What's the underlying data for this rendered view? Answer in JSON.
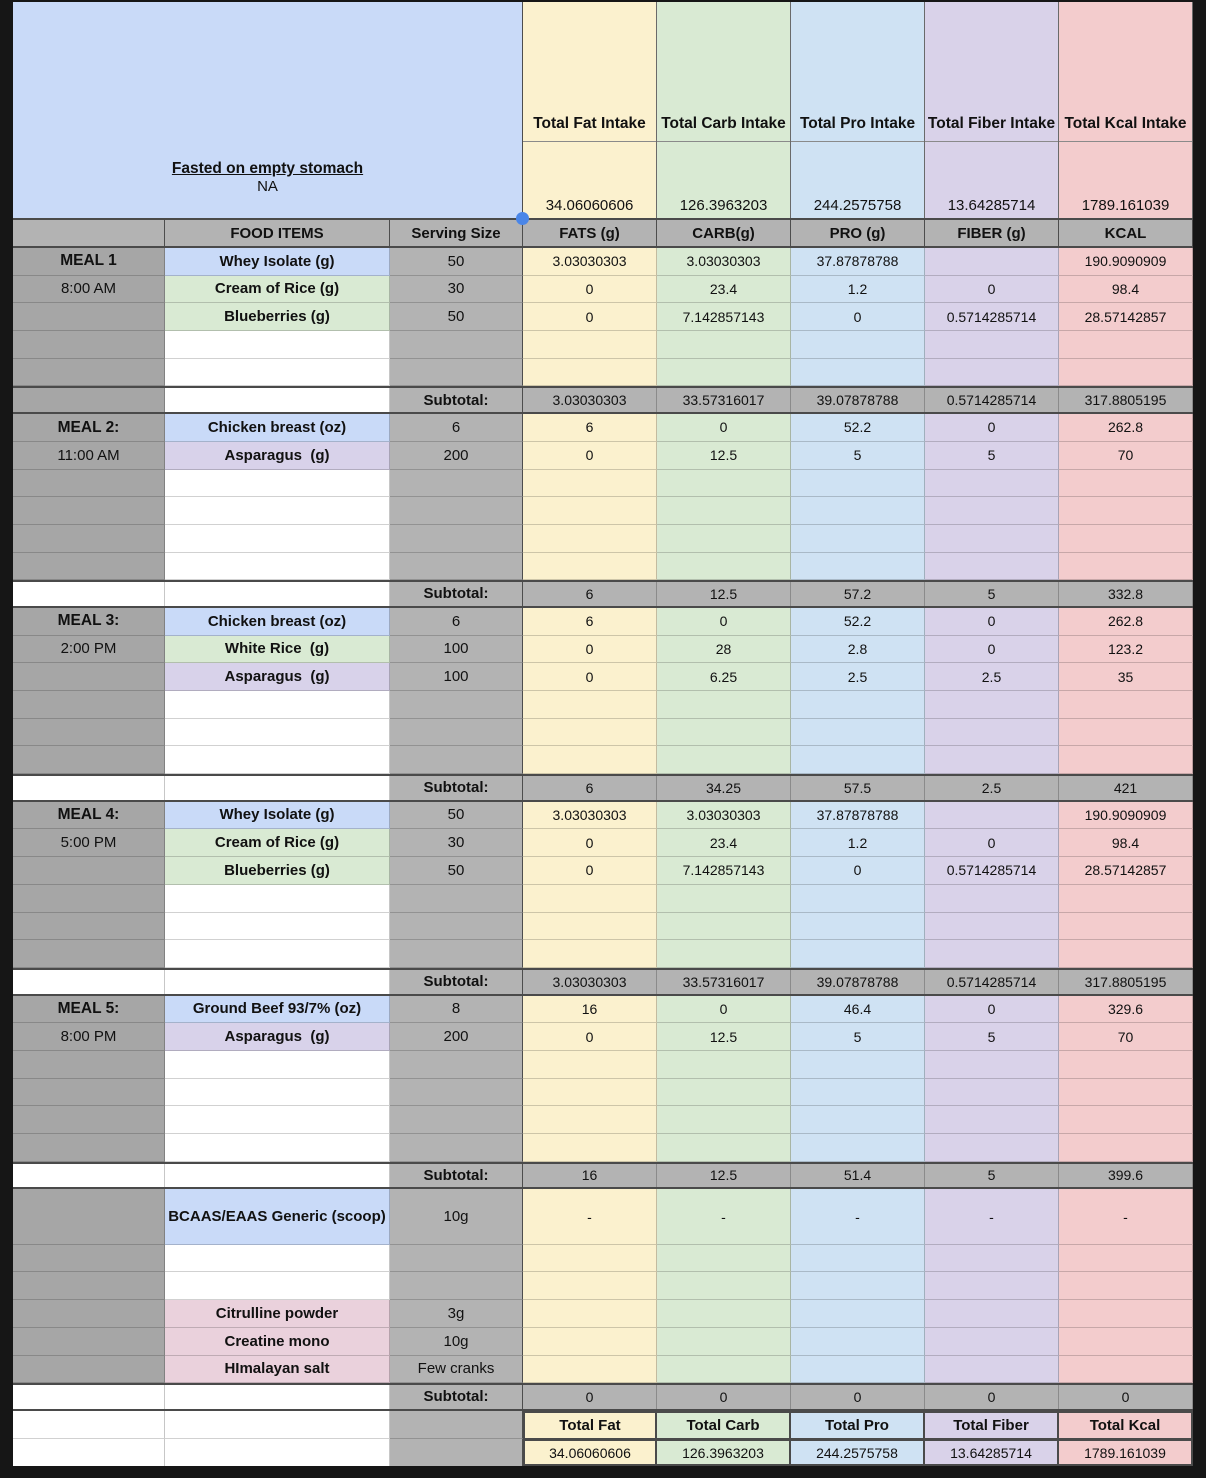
{
  "colors": {
    "header_blue": "#c9daf8",
    "col_fat": "#fbf1ce",
    "col_carb": "#d9ead3",
    "col_pro": "#cfe2f3",
    "col_fiber": "#d9d2e9",
    "col_kcal": "#f3cccd",
    "food_blue": "#c9daf8",
    "food_green": "#d9ead3",
    "food_purple": "#d8d2ea",
    "food_pink": "#ead1dc",
    "gray_a": "#a6a6a6",
    "gray_cell": "#b3b3b3",
    "white": "#ffffff",
    "selection_handle": "#4a86e8"
  },
  "top_note": {
    "title": "Fasted on empty stomach",
    "value": "NA"
  },
  "intake_summary": {
    "headers": [
      "Total Fat Intake",
      "Total Carb Intake",
      "Total Pro Intake",
      "Total Fiber Intake",
      "Total Kcal Intake"
    ],
    "totals": [
      "34.06060606",
      "126.3963203",
      "244.2575758",
      "13.64285714",
      "1789.161039"
    ]
  },
  "table_header": {
    "food_items": "FOOD ITEMS",
    "serving_size": "Serving Size",
    "macros": [
      "FATS (g)",
      "CARB(g)",
      "PRO (g)",
      "FIBER (g)",
      "KCAL"
    ]
  },
  "subtotal_label": "Subtotal:",
  "sections": [
    {
      "label": "MEAL 1",
      "time": "8:00 AM",
      "empties": 2,
      "subtotal_gray_a": true,
      "rows": [
        {
          "food": "Whey Isolate (g)",
          "color": "food_blue",
          "serving": "50",
          "values": [
            "3.03030303",
            "3.03030303",
            "37.87878788",
            "",
            "190.9090909"
          ]
        },
        {
          "food": "Cream of Rice (g)",
          "color": "food_green",
          "serving": "30",
          "values": [
            "0",
            "23.4",
            "1.2",
            "0",
            "98.4"
          ]
        },
        {
          "food": "Blueberries (g)",
          "color": "food_green",
          "serving": "50",
          "values": [
            "0",
            "7.142857143",
            "0",
            "0.5714285714",
            "28.57142857"
          ]
        }
      ],
      "subtotal": [
        "3.03030303",
        "33.57316017",
        "39.07878788",
        "0.5714285714",
        "317.8805195"
      ]
    },
    {
      "label": "MEAL 2:",
      "time": "11:00 AM",
      "empties": 4,
      "subtotal_gray_a": false,
      "rows": [
        {
          "food": "Chicken breast (oz)",
          "color": "food_blue",
          "serving": "6",
          "values": [
            "6",
            "0",
            "52.2",
            "0",
            "262.8"
          ]
        },
        {
          "food": "Asparagus  (g)",
          "color": "food_purple",
          "serving": "200",
          "values": [
            "0",
            "12.5",
            "5",
            "5",
            "70"
          ]
        }
      ],
      "subtotal": [
        "6",
        "12.5",
        "57.2",
        "5",
        "332.8"
      ]
    },
    {
      "label": "MEAL 3:",
      "time": "2:00 PM",
      "empties": 3,
      "subtotal_gray_a": false,
      "rows": [
        {
          "food": "Chicken breast (oz)",
          "color": "food_blue",
          "serving": "6",
          "values": [
            "6",
            "0",
            "52.2",
            "0",
            "262.8"
          ]
        },
        {
          "food": "White Rice  (g)",
          "color": "food_green",
          "serving": "100",
          "values": [
            "0",
            "28",
            "2.8",
            "0",
            "123.2"
          ]
        },
        {
          "food": "Asparagus  (g)",
          "color": "food_purple",
          "serving": "100",
          "values": [
            "0",
            "6.25",
            "2.5",
            "2.5",
            "35"
          ]
        }
      ],
      "subtotal": [
        "6",
        "34.25",
        "57.5",
        "2.5",
        "421"
      ]
    },
    {
      "label": "MEAL 4:",
      "time": "5:00 PM",
      "empties": 3,
      "subtotal_gray_a": false,
      "rows": [
        {
          "food": "Whey Isolate (g)",
          "color": "food_blue",
          "serving": "50",
          "values": [
            "3.03030303",
            "3.03030303",
            "37.87878788",
            "",
            "190.9090909"
          ]
        },
        {
          "food": "Cream of Rice (g)",
          "color": "food_green",
          "serving": "30",
          "values": [
            "0",
            "23.4",
            "1.2",
            "0",
            "98.4"
          ]
        },
        {
          "food": "Blueberries (g)",
          "color": "food_green",
          "serving": "50",
          "values": [
            "0",
            "7.142857143",
            "0",
            "0.5714285714",
            "28.57142857"
          ]
        }
      ],
      "subtotal": [
        "3.03030303",
        "33.57316017",
        "39.07878788",
        "0.5714285714",
        "317.8805195"
      ]
    },
    {
      "label": "MEAL 5:",
      "time": "8:00 PM",
      "empties": 4,
      "subtotal_gray_a": false,
      "rows": [
        {
          "food": "Ground Beef 93/7% (oz)",
          "color": "food_blue",
          "serving": "8",
          "values": [
            "16",
            "0",
            "46.4",
            "0",
            "329.6"
          ]
        },
        {
          "food": "Asparagus  (g)",
          "color": "food_purple",
          "serving": "200",
          "values": [
            "0",
            "12.5",
            "5",
            "5",
            "70"
          ]
        }
      ],
      "subtotal": [
        "16",
        "12.5",
        "51.4",
        "5",
        "399.6"
      ]
    },
    {
      "label": "",
      "time": "",
      "empties": 0,
      "subtotal_gray_a": false,
      "rows": [
        {
          "food": "BCAAS/EAAS Generic (scoop)",
          "color": "food_blue",
          "serving": "10g",
          "tall": true,
          "values": [
            "-",
            "-",
            "-",
            "-",
            "-"
          ]
        },
        {
          "food": "",
          "color": "white",
          "serving": "",
          "values": [
            "",
            "",
            "",
            "",
            ""
          ]
        },
        {
          "food": "",
          "color": "white",
          "serving": "",
          "values": [
            "",
            "",
            "",
            "",
            ""
          ]
        },
        {
          "food": "Citrulline powder",
          "color": "food_pink",
          "serving": "3g",
          "values": [
            "",
            "",
            "",
            "",
            ""
          ]
        },
        {
          "food": "Creatine mono",
          "color": "food_pink",
          "serving": "10g",
          "values": [
            "",
            "",
            "",
            "",
            ""
          ]
        },
        {
          "food": "HImalayan salt",
          "color": "food_pink",
          "serving": "Few cranks",
          "values": [
            "",
            "",
            "",
            "",
            ""
          ]
        }
      ],
      "subtotal": [
        "0",
        "0",
        "0",
        "0",
        "0"
      ]
    }
  ],
  "grand_totals": {
    "labels": [
      "Total Fat",
      "Total Carb",
      "Total Pro",
      "Total Fiber",
      "Total Kcal"
    ],
    "values": [
      "34.06060606",
      "126.3963203",
      "244.2575758",
      "13.64285714",
      "1789.161039"
    ]
  }
}
